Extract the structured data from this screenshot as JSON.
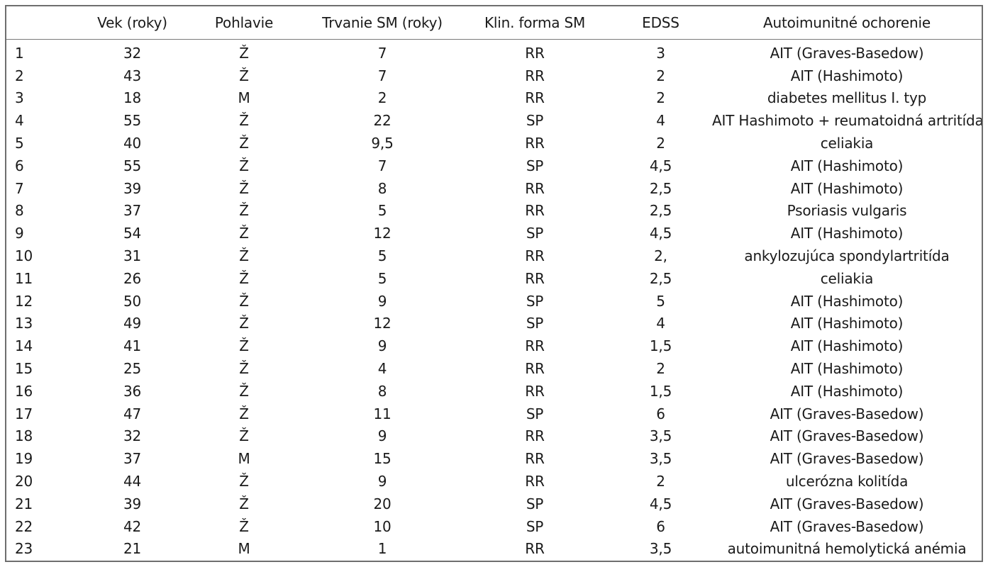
{
  "table": {
    "headers": [
      "",
      "Vek (roky)",
      "Pohlavie",
      "Trvanie SM (roky)",
      "Klin. forma SM",
      "EDSS",
      "Autoimunitné ochorenie"
    ],
    "rows": [
      [
        "1",
        "32",
        "Ž",
        "7",
        "RR",
        "3",
        "AIT (Graves-Basedow)"
      ],
      [
        "2",
        "43",
        "Ž",
        "7",
        "RR",
        "2",
        "AIT (Hashimoto)"
      ],
      [
        "3",
        "18",
        "M",
        "2",
        "RR",
        "2",
        "diabetes mellitus I. typ"
      ],
      [
        "4",
        "55",
        "Ž",
        "22",
        "SP",
        "4",
        "AIT Hashimoto + reumatoidná artritída"
      ],
      [
        "5",
        "40",
        "Ž",
        "9,5",
        "RR",
        "2",
        "celiakia"
      ],
      [
        "6",
        "55",
        "Ž",
        "7",
        "SP",
        "4,5",
        "AIT (Hashimoto)"
      ],
      [
        "7",
        "39",
        "Ž",
        "8",
        "RR",
        "2,5",
        "AIT (Hashimoto)"
      ],
      [
        "8",
        "37",
        "Ž",
        "5",
        "RR",
        "2,5",
        "Psoriasis vulgaris"
      ],
      [
        "9",
        "54",
        "Ž",
        "12",
        "SP",
        "4,5",
        "AIT (Hashimoto)"
      ],
      [
        "10",
        "31",
        "Ž",
        "5",
        "RR",
        "2,",
        "ankylozujúca spondylartritída"
      ],
      [
        "11",
        "26",
        "Ž",
        "5",
        "RR",
        "2,5",
        "celiakia"
      ],
      [
        "12",
        "50",
        "Ž",
        "9",
        "SP",
        "5",
        "AIT (Hashimoto)"
      ],
      [
        "13",
        "49",
        "Ž",
        "12",
        "SP",
        "4",
        "AIT (Hashimoto)"
      ],
      [
        "14",
        "41",
        "Ž",
        "9",
        "RR",
        "1,5",
        "AIT (Hashimoto)"
      ],
      [
        "15",
        "25",
        "Ž",
        "4",
        "RR",
        "2",
        "AIT (Hashimoto)"
      ],
      [
        "16",
        "36",
        "Ž",
        "8",
        "RR",
        "1,5",
        "AIT (Hashimoto)"
      ],
      [
        "17",
        "47",
        "Ž",
        "11",
        "SP",
        "6",
        "AIT (Graves-Basedow)"
      ],
      [
        "18",
        "32",
        "Ž",
        "9",
        "RR",
        "3,5",
        "AIT (Graves-Basedow)"
      ],
      [
        "19",
        "37",
        "M",
        "15",
        "RR",
        "3,5",
        "AIT (Graves-Basedow)"
      ],
      [
        "20",
        "44",
        "Ž",
        "9",
        "RR",
        "2",
        "ulcerózna kolitída"
      ],
      [
        "21",
        "39",
        "Ž",
        "20",
        "SP",
        "4,5",
        "AIT (Graves-Basedow)"
      ],
      [
        "22",
        "42",
        "Ž",
        "10",
        "SP",
        "6",
        "AIT (Graves-Basedow)"
      ],
      [
        "23",
        "21",
        "M",
        "1",
        "RR",
        "3,5",
        "autoimunitná hemolytická anémia"
      ]
    ]
  }
}
